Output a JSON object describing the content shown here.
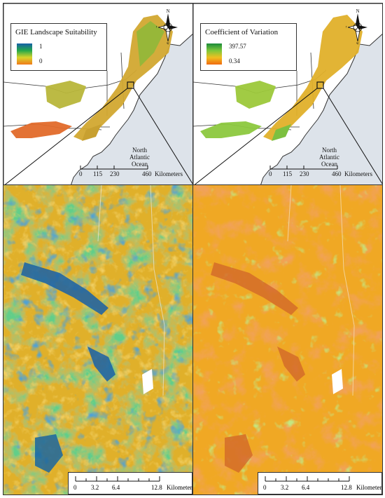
{
  "left_panel": {
    "legend_title": "GIE Landscape Suitability",
    "legend_high": "1",
    "legend_low": "0",
    "ramp_colors": [
      "#1560a8",
      "#22a84a",
      "#d8d42a",
      "#f07a1a"
    ]
  },
  "right_panel": {
    "legend_title": "Coefficient of Variation",
    "legend_high": "397.57",
    "legend_low": "0.34",
    "ramp_colors": [
      "#1a8a3a",
      "#7cc83a",
      "#f0c020",
      "#f06a10"
    ]
  },
  "compass": {
    "n": "N",
    "s": "S",
    "e": "E",
    "w": "W"
  },
  "ocean_label": [
    "North",
    "Atlantic",
    "Ocean"
  ],
  "scale_top": {
    "ticks": [
      "0",
      "115",
      "230",
      "460"
    ],
    "unit": "Kilometers"
  },
  "scale_bottom": {
    "ticks": [
      "0",
      "3.2",
      "6.4",
      "12.8"
    ],
    "unit": "Kilometers"
  },
  "colors": {
    "land_outline": "#333333",
    "ocean": "#dde3ea",
    "suitability_high": "#1560a8",
    "suitability_mid": "#22a84a",
    "cv_base": "#f0a020"
  }
}
